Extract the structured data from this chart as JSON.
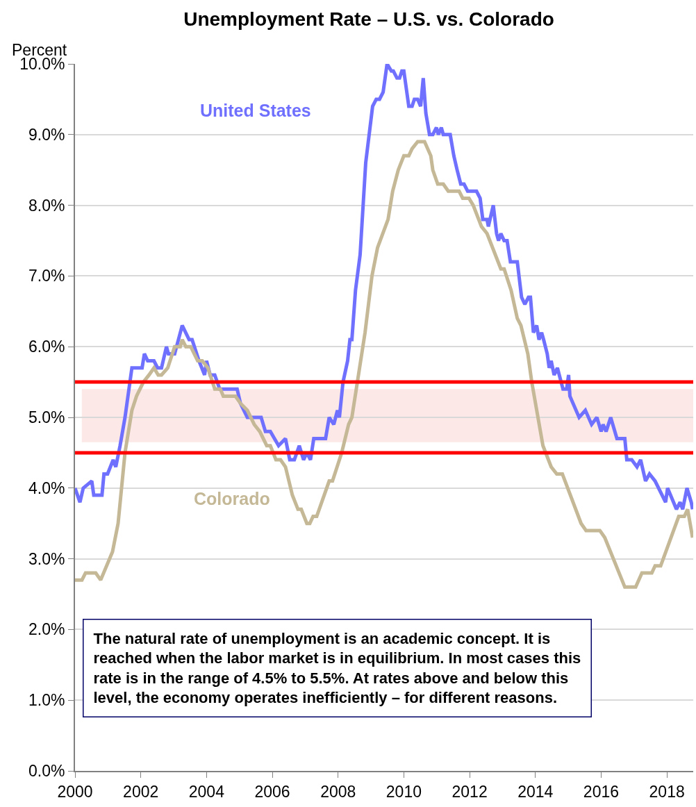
{
  "chart_data": {
    "type": "line",
    "title": "Unemployment Rate – U.S. vs. Colorado",
    "ylabel": "Percent",
    "xlim": [
      2000,
      2018.8
    ],
    "xticks": [
      2000,
      2002,
      2004,
      2006,
      2008,
      2010,
      2012,
      2014,
      2016,
      2018
    ],
    "ylim": [
      0,
      10
    ],
    "yticks": [
      {
        "value": 0,
        "label": "0.0%"
      },
      {
        "value": 1,
        "label": "1.0%"
      },
      {
        "value": 2,
        "label": "2.0%"
      },
      {
        "value": 3,
        "label": "3.0%"
      },
      {
        "value": 4,
        "label": "4.0%"
      },
      {
        "value": 5,
        "label": "5.0%"
      },
      {
        "value": 6,
        "label": "6.0%"
      },
      {
        "value": 7,
        "label": "7.0%"
      },
      {
        "value": 8,
        "label": "8.0%"
      },
      {
        "value": 9,
        "label": "9.0%"
      },
      {
        "value": 10,
        "label": "10.0%"
      }
    ],
    "grid": "y",
    "legend": false,
    "marker": "none",
    "line_style": "solid",
    "series": [
      {
        "name": "United States",
        "color": "#7070ff",
        "x": [
          2000.0,
          2000.15,
          2000.25,
          2000.51,
          2000.57,
          2000.82,
          2000.88,
          2000.99,
          2001.16,
          2001.24,
          2001.37,
          2001.52,
          2001.73,
          2002.04,
          2002.11,
          2002.21,
          2002.4,
          2002.51,
          2002.63,
          2002.78,
          2002.84,
          2003.03,
          2003.26,
          2003.47,
          2003.56,
          2003.77,
          2003.94,
          2004.0,
          2004.11,
          2004.25,
          2004.4,
          2004.61,
          2004.74,
          2004.93,
          2005.03,
          2005.24,
          2005.45,
          2005.66,
          2005.79,
          2005.94,
          2006.19,
          2006.4,
          2006.53,
          2006.67,
          2006.82,
          2006.95,
          2007.05,
          2007.16,
          2007.26,
          2007.45,
          2007.62,
          2007.73,
          2007.87,
          2007.98,
          2008.04,
          2008.15,
          2008.29,
          2008.36,
          2008.42,
          2008.53,
          2008.67,
          2008.84,
          2009.05,
          2009.16,
          2009.26,
          2009.37,
          2009.49,
          2009.62,
          2009.68,
          2009.79,
          2009.87,
          2009.94,
          2010.0,
          2010.15,
          2010.25,
          2010.32,
          2010.42,
          2010.51,
          2010.59,
          2010.67,
          2010.78,
          2010.88,
          2010.99,
          2011.05,
          2011.14,
          2011.2,
          2011.41,
          2011.52,
          2011.62,
          2011.73,
          2011.83,
          2011.94,
          2012.21,
          2012.32,
          2012.4,
          2012.53,
          2012.57,
          2012.72,
          2012.82,
          2012.88,
          2012.95,
          2013.05,
          2013.14,
          2013.24,
          2013.45,
          2013.58,
          2013.68,
          2013.79,
          2013.85,
          2013.94,
          2014.04,
          2014.11,
          2014.19,
          2014.25,
          2014.36,
          2014.42,
          2014.48,
          2014.57,
          2014.67,
          2014.84,
          2014.95,
          2015.01,
          2015.05,
          2015.33,
          2015.52,
          2015.71,
          2015.87,
          2016.0,
          2016.06,
          2016.15,
          2016.29,
          2016.48,
          2016.72,
          2016.78,
          2016.93,
          2017.09,
          2017.2,
          2017.35,
          2017.47,
          2017.64,
          2017.96,
          2018.02,
          2018.29,
          2018.4,
          2018.48,
          2018.61,
          2018.74,
          2018.78
        ],
        "values": [
          4.0,
          3.8,
          4.0,
          4.1,
          3.9,
          3.9,
          4.2,
          4.2,
          4.4,
          4.3,
          4.6,
          5.0,
          5.7,
          5.7,
          5.9,
          5.8,
          5.8,
          5.7,
          5.7,
          6.0,
          5.9,
          5.9,
          6.3,
          6.1,
          6.1,
          5.8,
          5.6,
          5.8,
          5.6,
          5.6,
          5.4,
          5.4,
          5.4,
          5.4,
          5.2,
          5.0,
          5.0,
          5.0,
          4.8,
          4.8,
          4.6,
          4.7,
          4.4,
          4.4,
          4.6,
          4.4,
          4.5,
          4.4,
          4.7,
          4.7,
          4.7,
          5.0,
          4.9,
          5.1,
          5.0,
          5.5,
          5.8,
          6.1,
          6.1,
          6.8,
          7.3,
          8.6,
          9.4,
          9.5,
          9.5,
          9.6,
          10.0,
          9.9,
          9.9,
          9.8,
          9.8,
          9.9,
          9.9,
          9.4,
          9.4,
          9.5,
          9.5,
          9.4,
          9.8,
          9.3,
          9.0,
          9.0,
          9.1,
          9.0,
          9.1,
          9.0,
          9.0,
          8.7,
          8.5,
          8.3,
          8.3,
          8.2,
          8.2,
          8.1,
          7.8,
          7.8,
          7.7,
          8.0,
          7.6,
          7.5,
          7.6,
          7.5,
          7.5,
          7.2,
          7.2,
          6.7,
          6.6,
          6.7,
          6.7,
          6.2,
          6.3,
          6.1,
          6.2,
          6.1,
          5.9,
          5.7,
          5.8,
          5.6,
          5.7,
          5.4,
          5.4,
          5.6,
          5.3,
          5.0,
          5.1,
          4.9,
          5.0,
          4.8,
          4.9,
          4.8,
          5.0,
          4.7,
          4.7,
          4.4,
          4.4,
          4.3,
          4.4,
          4.1,
          4.2,
          4.1,
          3.8,
          4.0,
          3.7,
          3.8,
          3.7,
          4.0,
          3.8,
          3.7
        ]
      },
      {
        "name": "Colorado",
        "color": "#c4b896",
        "x": [
          2000.0,
          2000.21,
          2000.32,
          2000.63,
          2000.78,
          2001.14,
          2001.31,
          2001.52,
          2001.73,
          2001.87,
          2002.08,
          2002.25,
          2002.4,
          2002.53,
          2002.63,
          2002.82,
          2003.03,
          2003.2,
          2003.26,
          2003.37,
          2003.52,
          2003.73,
          2003.87,
          2004.04,
          2004.25,
          2004.42,
          2004.51,
          2004.88,
          2005.03,
          2005.24,
          2005.45,
          2005.62,
          2005.83,
          2005.94,
          2006.11,
          2006.25,
          2006.4,
          2006.61,
          2006.78,
          2006.88,
          2007.05,
          2007.14,
          2007.24,
          2007.35,
          2007.73,
          2007.83,
          2008.11,
          2008.32,
          2008.42,
          2008.82,
          2009.03,
          2009.2,
          2009.52,
          2009.66,
          2009.83,
          2010.0,
          2010.15,
          2010.25,
          2010.42,
          2010.63,
          2010.82,
          2010.88,
          2011.03,
          2011.2,
          2011.35,
          2011.68,
          2011.79,
          2011.98,
          2012.11,
          2012.36,
          2012.53,
          2012.95,
          2013.05,
          2013.26,
          2013.45,
          2013.56,
          2013.77,
          2013.89,
          2014.23,
          2014.48,
          2014.65,
          2014.82,
          2015.39,
          2015.54,
          2015.96,
          2016.11,
          2016.72,
          2017.05,
          2017.24,
          2017.54,
          2017.64,
          2017.81,
          2018.36,
          2018.53,
          2018.63,
          2018.78
        ],
        "values": [
          2.7,
          2.7,
          2.8,
          2.8,
          2.7,
          3.1,
          3.5,
          4.5,
          5.1,
          5.3,
          5.5,
          5.6,
          5.7,
          5.6,
          5.6,
          5.7,
          6.0,
          6.0,
          6.1,
          6.0,
          6.0,
          5.8,
          5.8,
          5.7,
          5.4,
          5.4,
          5.3,
          5.3,
          5.2,
          5.1,
          4.9,
          4.8,
          4.6,
          4.6,
          4.4,
          4.4,
          4.3,
          3.9,
          3.7,
          3.7,
          3.5,
          3.5,
          3.6,
          3.6,
          4.1,
          4.1,
          4.5,
          4.9,
          5.0,
          6.2,
          7.0,
          7.4,
          7.8,
          8.2,
          8.5,
          8.7,
          8.7,
          8.8,
          8.9,
          8.9,
          8.7,
          8.5,
          8.3,
          8.3,
          8.2,
          8.2,
          8.1,
          8.1,
          8.0,
          7.7,
          7.6,
          7.1,
          7.1,
          6.8,
          6.4,
          6.3,
          5.9,
          5.5,
          4.6,
          4.3,
          4.2,
          4.2,
          3.5,
          3.4,
          3.4,
          3.3,
          2.6,
          2.6,
          2.8,
          2.8,
          2.9,
          2.9,
          3.6,
          3.6,
          3.7,
          3.3
        ]
      }
    ],
    "ref_lines": [
      {
        "axis": "y",
        "value": 5.5,
        "color": "#ff0000"
      },
      {
        "axis": "y",
        "value": 4.5,
        "color": "#ff0000"
      }
    ],
    "bands": [
      {
        "axis": "y",
        "from": 4.65,
        "to": 5.4,
        "color": "#fde8e8"
      }
    ],
    "annotations": [
      "The natural rate of unemployment is an academic concept. It is reached when the labor market is in equilibrium. In most cases this rate is in the range of 4.5% to 5.5%. At rates above and below this level, the economy operates inefficiently – for different reasons."
    ]
  }
}
